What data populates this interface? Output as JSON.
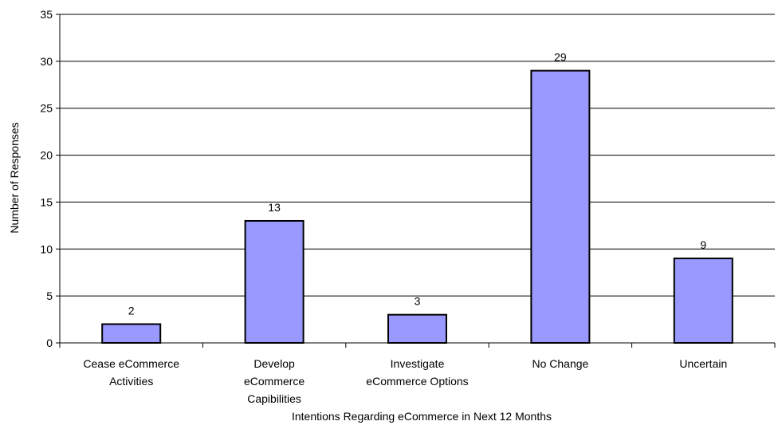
{
  "chart_data": {
    "type": "bar",
    "title": "",
    "xlabel": "Intentions Regarding eCommerce in Next 12 Months",
    "ylabel": "Number of Responses",
    "ylim": [
      0,
      35
    ],
    "yticks": [
      0,
      5,
      10,
      15,
      20,
      25,
      30,
      35
    ],
    "grid": true,
    "categories": [
      [
        "Cease eCommerce",
        "Activities"
      ],
      [
        "Develop",
        "eCommerce",
        "Capibilities"
      ],
      [
        "Investigate",
        "eCommerce Options"
      ],
      [
        "No Change"
      ],
      [
        "Uncertain"
      ]
    ],
    "values": [
      2,
      13,
      3,
      29,
      9
    ],
    "data_labels": [
      "2",
      "13",
      "3",
      "29",
      "9"
    ],
    "bar_color": "#9999ff",
    "bar_edge_color": "#000000"
  }
}
